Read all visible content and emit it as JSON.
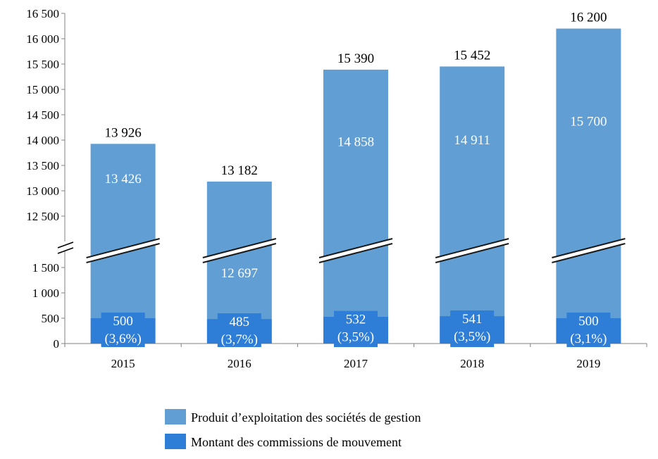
{
  "chart_data": {
    "type": "bar",
    "stacked": true,
    "broken_axis": true,
    "categories": [
      "2015",
      "2016",
      "2017",
      "2018",
      "2019"
    ],
    "totals": [
      13926,
      13182,
      15390,
      15452,
      16200
    ],
    "total_labels": [
      "13 926",
      "13 182",
      "15 390",
      "15 452",
      "16 200"
    ],
    "series": [
      {
        "name": "Produit d’exploitation des sociétés de gestion",
        "color": "#609ED3",
        "values": [
          13426,
          12697,
          14858,
          14911,
          15700
        ],
        "labels": [
          "13 426",
          "12 697",
          "14 858",
          "14 911",
          "15 700"
        ]
      },
      {
        "name": "Montant des commissions de mouvement",
        "color": "#2E7DD6",
        "values": [
          500,
          485,
          532,
          541,
          500
        ],
        "labels": [
          "500",
          "485",
          "532",
          "541",
          "500"
        ],
        "share_labels": [
          "(3,6%)",
          "(3,7%)",
          "(3,5%)",
          "(3,5%)",
          "(3,1%)"
        ]
      }
    ],
    "y_ticks_lower": [
      {
        "value": 0,
        "label": "0"
      },
      {
        "value": 500,
        "label": "500"
      },
      {
        "value": 1000,
        "label": "1 000"
      },
      {
        "value": 1500,
        "label": "1 500"
      }
    ],
    "y_ticks_upper": [
      {
        "value": 12500,
        "label": "12 500"
      },
      {
        "value": 13000,
        "label": "13 000"
      },
      {
        "value": 13500,
        "label": "13 500"
      },
      {
        "value": 14000,
        "label": "14 000"
      },
      {
        "value": 14500,
        "label": "14 500"
      },
      {
        "value": 15000,
        "label": "15 000"
      },
      {
        "value": 15500,
        "label": "15 500"
      },
      {
        "value": 16000,
        "label": "16 000"
      },
      {
        "value": 16500,
        "label": "16 500"
      }
    ],
    "ylim_lower": [
      0,
      1500
    ],
    "ylim_upper": [
      12500,
      16500
    ],
    "legend_position": "bottom",
    "axis_color": "#808080",
    "label_color_inside": "#ffffff"
  }
}
